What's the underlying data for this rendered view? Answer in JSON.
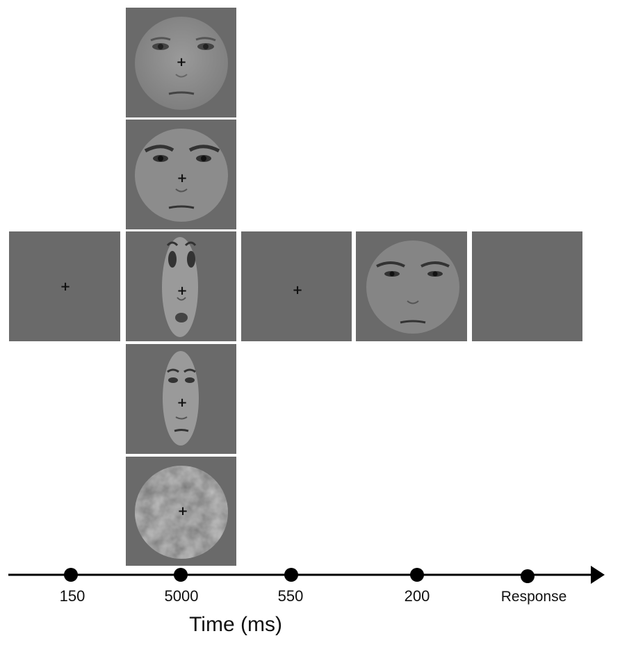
{
  "fixation_symbol": "+",
  "timeline": {
    "points": [
      {
        "label": "150"
      },
      {
        "label": "5000"
      },
      {
        "label": "550"
      },
      {
        "label": "200"
      },
      {
        "label": "Response"
      }
    ],
    "axis_title": "Time (ms)"
  },
  "colors": {
    "panel_bg": "#6a6a6a",
    "face_skin": "#8a8a8a",
    "line": "#000000"
  }
}
